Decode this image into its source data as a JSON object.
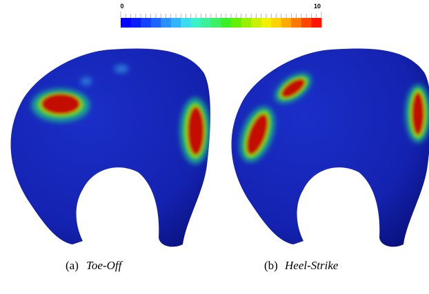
{
  "colorbar": {
    "min": 0,
    "max": 10
  },
  "panels": [
    {
      "label": "(a)",
      "caption": "Toe-Off"
    },
    {
      "label": "(b)",
      "caption": "Heel-Strike"
    }
  ]
}
